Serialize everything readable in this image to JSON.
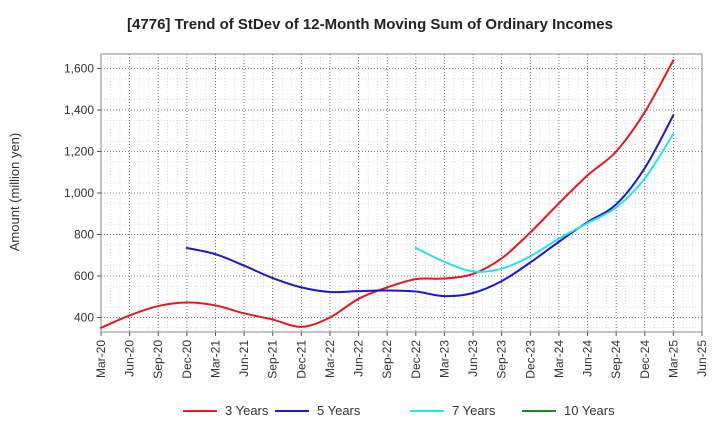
{
  "chart_data": {
    "type": "line",
    "title": "[4776]  Trend of StDev of 12-Month Moving Sum of Ordinary Incomes",
    "xlabel": "",
    "ylabel": "Amount (million yen)",
    "ylim": [
      330,
      1670
    ],
    "yticks": [
      400,
      600,
      800,
      1000,
      1200,
      1400,
      1600
    ],
    "ytick_labels": [
      "400",
      "600",
      "800",
      "1,000",
      "1,200",
      "1,400",
      "1,600"
    ],
    "xtick_labels": [
      "Mar-20",
      "Jun-20",
      "Sep-20",
      "Dec-20",
      "Mar-21",
      "Jun-21",
      "Sep-21",
      "Dec-21",
      "Mar-22",
      "Jun-22",
      "Sep-22",
      "Dec-22",
      "Mar-23",
      "Jun-23",
      "Sep-23",
      "Dec-23",
      "Mar-24",
      "Jun-24",
      "Sep-24",
      "Dec-24",
      "Mar-25",
      "Jun-25"
    ],
    "grid": true,
    "legend_position": "bottom",
    "series": [
      {
        "name": "3 Years",
        "color": "#e8171d",
        "x": [
          "Mar-20",
          "Jun-20",
          "Sep-20",
          "Dec-20",
          "Mar-21",
          "Jun-21",
          "Sep-21",
          "Dec-21",
          "Mar-22",
          "Jun-22",
          "Sep-22",
          "Dec-22",
          "Mar-23",
          "Jun-23",
          "Sep-23",
          "Dec-23",
          "Mar-24",
          "Jun-24",
          "Sep-24",
          "Dec-24",
          "Mar-25"
        ],
        "values": [
          350,
          410,
          455,
          472,
          458,
          420,
          390,
          355,
          400,
          490,
          545,
          585,
          588,
          610,
          685,
          810,
          950,
          1085,
          1200,
          1390,
          1640
        ]
      },
      {
        "name": "5 Years",
        "color": "#1a1acc",
        "x": [
          "Dec-20",
          "Mar-21",
          "Jun-21",
          "Sep-21",
          "Dec-21",
          "Mar-22",
          "Jun-22",
          "Sep-22",
          "Dec-22",
          "Mar-23",
          "Jun-23",
          "Sep-23",
          "Dec-23",
          "Mar-24",
          "Jun-24",
          "Sep-24",
          "Dec-24",
          "Mar-25"
        ],
        "values": [
          735,
          705,
          650,
          590,
          545,
          523,
          527,
          530,
          525,
          503,
          518,
          575,
          665,
          765,
          860,
          945,
          1120,
          1375
        ]
      },
      {
        "name": "7 Years",
        "color": "#22e5ee",
        "x": [
          "Dec-22",
          "Mar-23",
          "Jun-23",
          "Sep-23",
          "Dec-23",
          "Mar-24",
          "Jun-24",
          "Sep-24",
          "Dec-24",
          "Mar-25"
        ],
        "values": [
          735,
          668,
          622,
          635,
          695,
          780,
          855,
          930,
          1070,
          1285
        ]
      },
      {
        "name": "10 Years",
        "color": "#1a8a1a",
        "x": [],
        "values": []
      }
    ]
  }
}
